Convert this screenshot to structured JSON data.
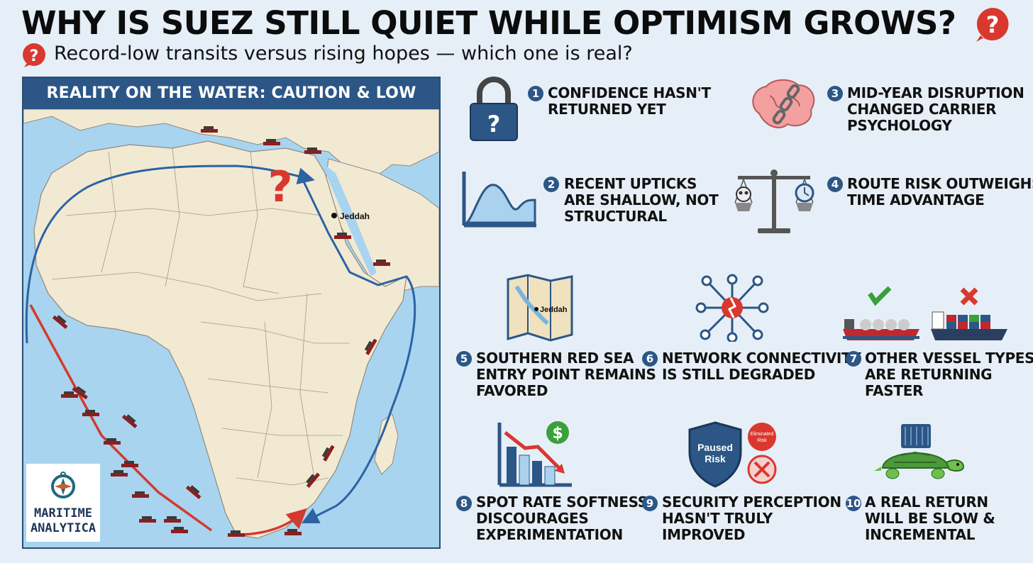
{
  "header": {
    "title": "WHY IS SUEZ STILL QUIET WHILE OPTIMISM GROWS?",
    "subtitle": "Record-low transits versus rising hopes — which one is real?"
  },
  "map": {
    "title": "REALITY ON THE WATER: CAUTION & LOW TRANSITS",
    "city_label": "Jeddah",
    "logo_text": "MARITIME\nANALYTICA"
  },
  "items": [
    {
      "number": "1",
      "label": "CONFIDENCE HASN'T\nRETURNED YET",
      "icon": "padlock-question-icon"
    },
    {
      "number": "2",
      "label": "RECENT UPTICKS\nARE SHALLOW, NOT\nSTRUCTURAL",
      "icon": "area-chart-icon"
    },
    {
      "number": "3",
      "label": "MID-YEAR DISRUPTION\nCHANGED CARRIER\nPSYCHOLOGY",
      "icon": "brain-chain-icon"
    },
    {
      "number": "4",
      "label": "ROUTE RISK OUTWEIGHS\nTIME ADVANTAGE",
      "icon": "balance-scale-icon"
    },
    {
      "number": "5",
      "label": "SOUTHERN RED SEA\nENTRY POINT REMAINS\nFAVORED",
      "icon": "folded-map-icon"
    },
    {
      "number": "6",
      "label": "NETWORK CONNECTIVITY\nIS STILL DEGRADED",
      "icon": "network-broken-icon"
    },
    {
      "number": "7",
      "label": "OTHER VESSEL TYPES\nARE RETURNING\nFASTER",
      "icon": "vessels-icon"
    },
    {
      "number": "8",
      "label": "SPOT RATE SOFTNESS\nDISCOURAGES\nEXPERIMENTATION",
      "icon": "falling-rate-chart-icon"
    },
    {
      "number": "9",
      "label": "SECURITY PERCEPTION\nHASN'T TRULY\nIMPROVED",
      "icon": "shield-icon"
    },
    {
      "number": "10",
      "label": "A REAL RETURN\nWILL BE SLOW &\nINCREMENTAL",
      "icon": "turtle-container-icon"
    }
  ],
  "icon_text": {
    "map_city": "Jeddah",
    "shield": "Paused\nRisk",
    "badge": "Eliminated\nRisk",
    "dollar": "$"
  },
  "colors": {
    "accent": "#2c5686",
    "background": "#e6eff7",
    "danger": "#d9382f",
    "route_blue": "#2b63a3",
    "route_red": "#d33a2f",
    "land": "#f2e9d3",
    "sea": "#a9d4ef"
  }
}
